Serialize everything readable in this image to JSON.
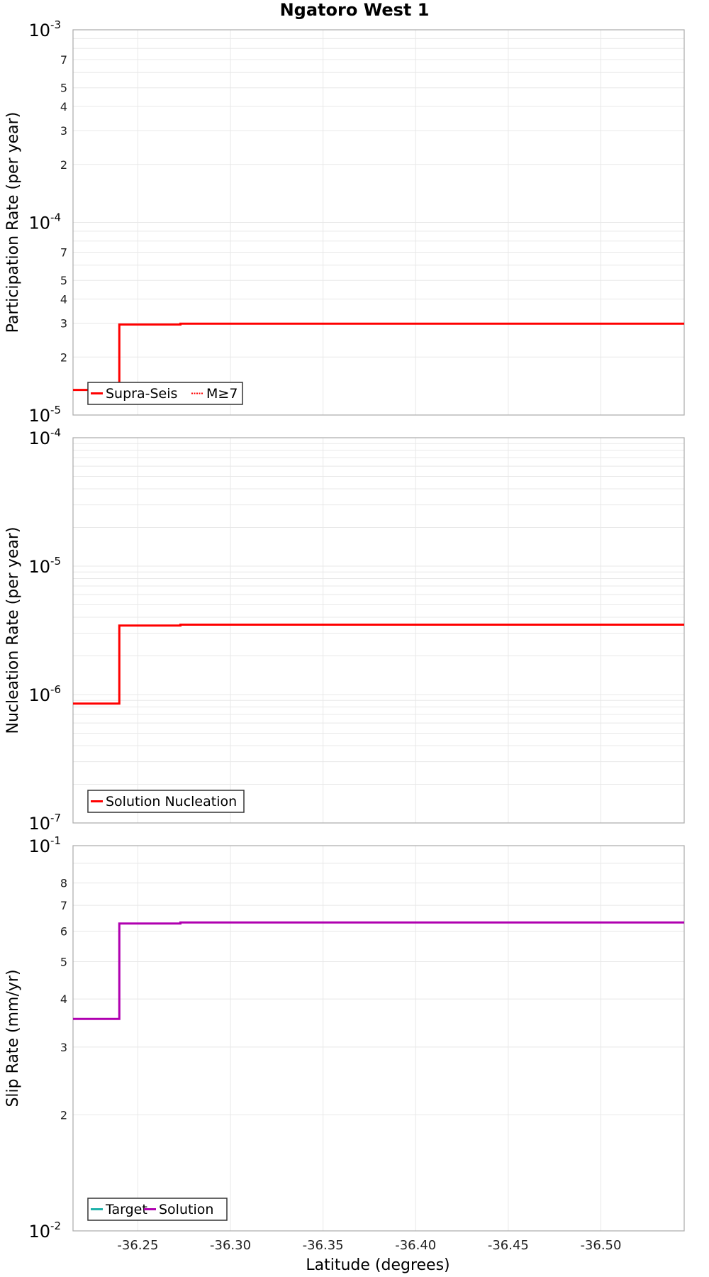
{
  "title": "Ngatoro West 1",
  "chart_data": [
    {
      "type": "line",
      "step": true,
      "ylabel": "Participation Rate (per year)",
      "yscale": "log",
      "ylim": [
        1e-05,
        0.001
      ],
      "xlim": [
        -36.215,
        -36.545
      ],
      "grid": true,
      "legend_position": "bottom-left",
      "major_ticks": [
        {
          "base": "10",
          "exp": "-3",
          "value": 0.001
        },
        {
          "base": "10",
          "exp": "-4",
          "value": 0.0001
        },
        {
          "base": "10",
          "exp": "-5",
          "value": 1e-05
        }
      ],
      "minor_ticks": [
        {
          "label": "7",
          "value": 0.0007
        },
        {
          "label": "5",
          "value": 0.0005
        },
        {
          "label": "4",
          "value": 0.0004
        },
        {
          "label": "3",
          "value": 0.0003
        },
        {
          "label": "2",
          "value": 0.0002
        },
        {
          "label": "7",
          "value": 7e-05
        },
        {
          "label": "5",
          "value": 5e-05
        },
        {
          "label": "4",
          "value": 4e-05
        },
        {
          "label": "3",
          "value": 3e-05
        },
        {
          "label": "2",
          "value": 2e-05
        }
      ],
      "series": [
        {
          "name": "Supra-Seis",
          "color": "#ff0000",
          "style": "solid",
          "points": [
            [
              -36.215,
              1.35e-05
            ],
            [
              -36.24,
              1.35e-05
            ],
            [
              -36.24,
              2.95e-05
            ],
            [
              -36.273,
              2.95e-05
            ],
            [
              -36.273,
              2.98e-05
            ],
            [
              -36.545,
              2.98e-05
            ]
          ]
        },
        {
          "name": "M≥7",
          "color": "#ff0000",
          "style": "dotted",
          "points": [
            [
              -36.35,
              2.98e-05
            ],
            [
              -36.545,
              2.98e-05
            ]
          ]
        }
      ]
    },
    {
      "type": "line",
      "step": true,
      "ylabel": "Nucleation Rate (per year)",
      "yscale": "log",
      "ylim": [
        1e-07,
        0.0001
      ],
      "xlim": [
        -36.215,
        -36.545
      ],
      "grid": true,
      "legend_position": "bottom-left",
      "major_ticks": [
        {
          "base": "10",
          "exp": "-4",
          "value": 0.0001
        },
        {
          "base": "10",
          "exp": "-5",
          "value": 1e-05
        },
        {
          "base": "10",
          "exp": "-6",
          "value": 1e-06
        },
        {
          "base": "10",
          "exp": "-7",
          "value": 1e-07
        }
      ],
      "minor_ticks": [],
      "series": [
        {
          "name": "Solution Nucleation",
          "color": "#ff0000",
          "style": "solid",
          "points": [
            [
              -36.215,
              8.5e-07
            ],
            [
              -36.24,
              8.5e-07
            ],
            [
              -36.24,
              3.45e-06
            ],
            [
              -36.273,
              3.45e-06
            ],
            [
              -36.273,
              3.5e-06
            ],
            [
              -36.545,
              3.5e-06
            ]
          ]
        }
      ]
    },
    {
      "type": "line",
      "step": true,
      "ylabel": "Slip Rate (mm/yr)",
      "xlabel": "Latitude (degrees)",
      "yscale": "log",
      "ylim": [
        0.01,
        0.1
      ],
      "xlim": [
        -36.215,
        -36.545
      ],
      "grid": true,
      "legend_position": "bottom-left",
      "major_ticks": [
        {
          "base": "10",
          "exp": "-1",
          "value": 0.1
        },
        {
          "base": "10",
          "exp": "-2",
          "value": 0.01
        }
      ],
      "minor_ticks": [
        {
          "label": "8",
          "value": 0.08
        },
        {
          "label": "7",
          "value": 0.07
        },
        {
          "label": "6",
          "value": 0.06
        },
        {
          "label": "5",
          "value": 0.05
        },
        {
          "label": "4",
          "value": 0.04
        },
        {
          "label": "3",
          "value": 0.03
        },
        {
          "label": "2",
          "value": 0.02
        }
      ],
      "series": [
        {
          "name": "Target",
          "color": "#20b2aa",
          "style": "solid",
          "points": []
        },
        {
          "name": "Solution",
          "color": "#b000b0",
          "style": "solid",
          "points": [
            [
              -36.215,
              0.0355
            ],
            [
              -36.24,
              0.0355
            ],
            [
              -36.24,
              0.0628
            ],
            [
              -36.273,
              0.0628
            ],
            [
              -36.273,
              0.0632
            ],
            [
              -36.545,
              0.0632
            ]
          ]
        }
      ]
    }
  ],
  "x_ticks": [
    {
      "label": "-36.25",
      "value": -36.25
    },
    {
      "label": "-36.30",
      "value": -36.3
    },
    {
      "label": "-36.35",
      "value": -36.35
    },
    {
      "label": "-36.40",
      "value": -36.4
    },
    {
      "label": "-36.45",
      "value": -36.45
    },
    {
      "label": "-36.50",
      "value": -36.5
    }
  ],
  "colors": {
    "grid": "#e8e8e8",
    "axis": "#aaaaaa",
    "legend_border": "#333333"
  }
}
